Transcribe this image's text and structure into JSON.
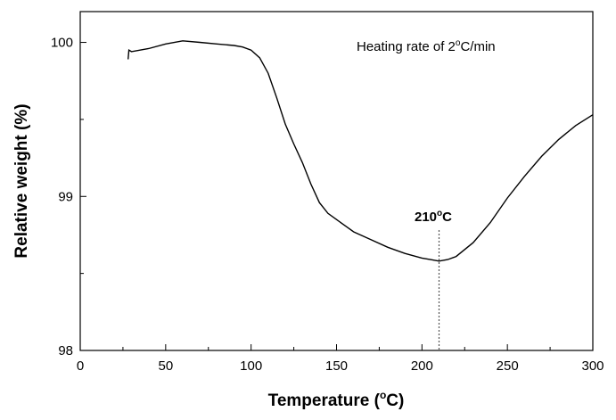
{
  "chart_data": {
    "type": "line",
    "xlabel": "Temperature",
    "xlabel_unit": "(°C)",
    "ylabel": "Relative weight (%)",
    "xlim": [
      0,
      300
    ],
    "ylim": [
      98,
      100.2
    ],
    "x_ticks": [
      0,
      50,
      100,
      150,
      200,
      250,
      300
    ],
    "y_ticks": [
      98,
      99,
      100
    ],
    "grid": false,
    "legend": "none",
    "series": [
      {
        "x": [
          28,
          28.5,
          30,
          40,
          50,
          60,
          70,
          80,
          90,
          95,
          100,
          105,
          110,
          115,
          120,
          125,
          130,
          135,
          140,
          145,
          150,
          160,
          170,
          180,
          190,
          200,
          205,
          210,
          215,
          220,
          230,
          240,
          250,
          260,
          270,
          280,
          290,
          300
        ],
        "values": [
          99.89,
          99.95,
          99.94,
          99.96,
          99.99,
          100.01,
          100.0,
          99.99,
          99.98,
          99.97,
          99.95,
          99.9,
          99.8,
          99.64,
          99.47,
          99.34,
          99.22,
          99.08,
          98.96,
          98.89,
          98.85,
          98.77,
          98.72,
          98.67,
          98.63,
          98.6,
          98.59,
          98.58,
          98.59,
          98.61,
          98.7,
          98.83,
          98.99,
          99.13,
          99.26,
          99.37,
          99.46,
          99.53
        ],
        "color": "#000000"
      }
    ],
    "annotations": [
      {
        "text": "Heating rate of 2°C/min"
      },
      {
        "text": "210°C",
        "x": 210,
        "line_style": "dotted"
      }
    ]
  }
}
